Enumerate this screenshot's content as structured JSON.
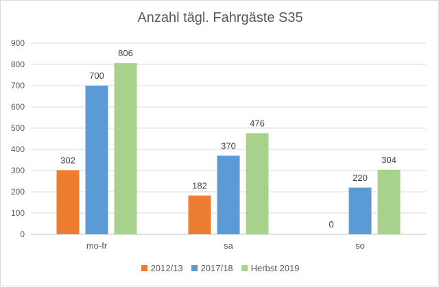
{
  "chart_data": {
    "type": "bar",
    "title": "Anzahl tägl. Fahrgäste S35",
    "categories": [
      "mo-fr",
      "sa",
      "so"
    ],
    "series": [
      {
        "name": "2012/13",
        "values": [
          302,
          182,
          0
        ],
        "color": "#ed7d31"
      },
      {
        "name": "2017/18",
        "values": [
          700,
          370,
          220
        ],
        "color": "#5b9bd5"
      },
      {
        "name": "Herbst 2019",
        "values": [
          806,
          476,
          304
        ],
        "color": "#a9d18e"
      }
    ],
    "ylim": [
      0,
      900
    ],
    "yticks": [
      0,
      100,
      200,
      300,
      400,
      500,
      600,
      700,
      800,
      900
    ],
    "grid": true,
    "legend_position": "bottom",
    "data_labels": true
  }
}
